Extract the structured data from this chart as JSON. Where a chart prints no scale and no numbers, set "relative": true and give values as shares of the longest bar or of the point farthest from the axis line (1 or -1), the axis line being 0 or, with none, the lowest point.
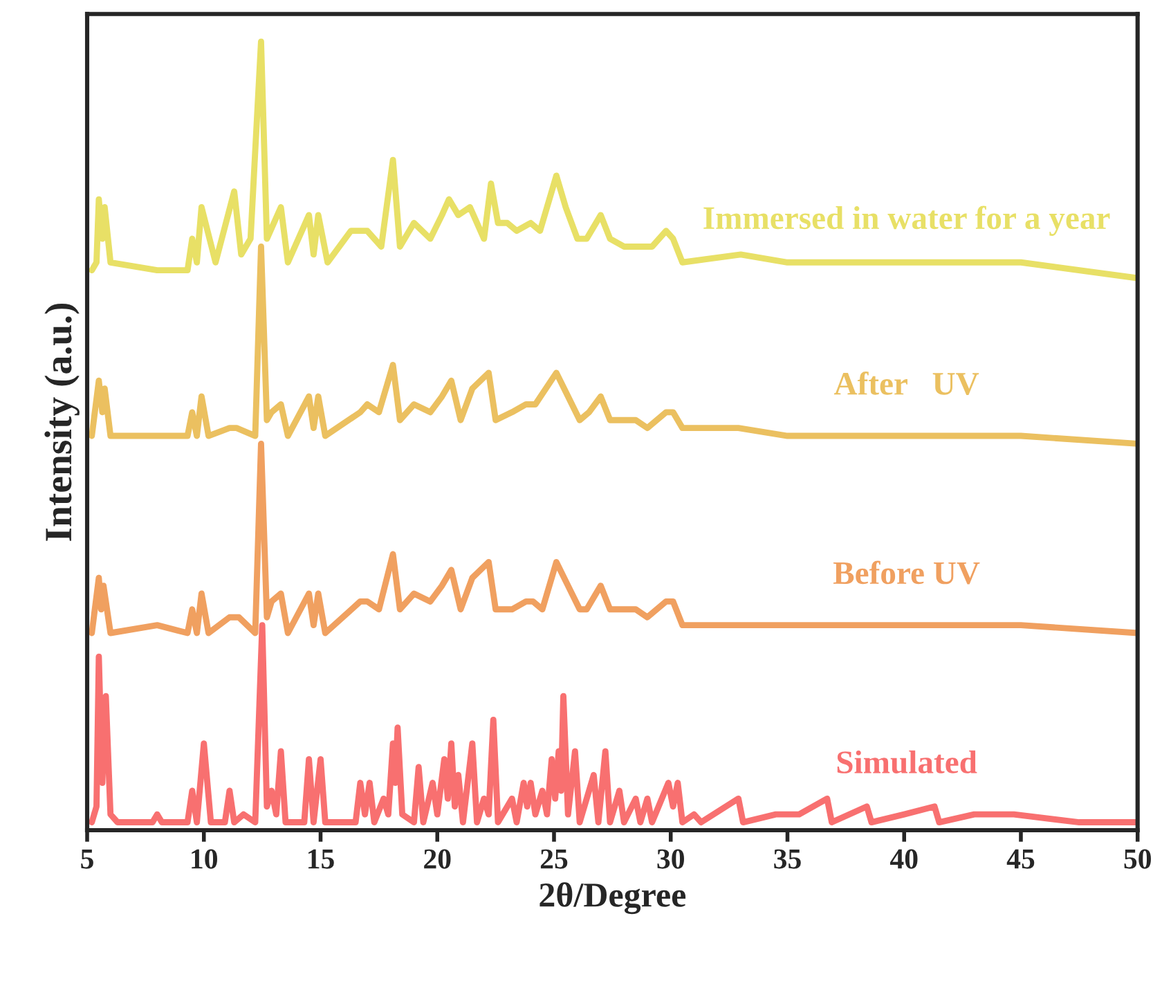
{
  "chart_data": {
    "type": "line",
    "relative": true,
    "xlabel": "2θ/Degree",
    "ylabel": "Intensity (a.u.)",
    "xlim": [
      5,
      50
    ],
    "xticks": [
      5,
      10,
      15,
      20,
      25,
      30,
      35,
      40,
      45,
      50
    ],
    "tick_labels": "x",
    "grid": false,
    "legend": false,
    "series": [
      {
        "name": "Immersed in water for a year",
        "color": "#e8e066",
        "x": [
          5.2,
          5.4,
          5.5,
          5.65,
          5.75,
          6.0,
          8.0,
          9.3,
          9.5,
          9.7,
          9.9,
          10.5,
          11.3,
          11.6,
          12.0,
          12.45,
          12.7,
          13.3,
          13.6,
          14.5,
          14.7,
          14.9,
          15.3,
          16.3,
          16.7,
          17.0,
          17.6,
          18.1,
          18.4,
          19.0,
          19.7,
          20.2,
          20.5,
          20.9,
          21.4,
          22.0,
          22.3,
          22.6,
          23.0,
          23.4,
          24.0,
          24.4,
          25.1,
          25.5,
          26.0,
          26.4,
          27.0,
          27.4,
          28.0,
          28.7,
          29.2,
          29.8,
          30.1,
          30.5,
          33.0,
          35.0,
          38.0,
          41.3,
          45.0,
          50.0
        ],
        "values": [
          0.71,
          0.72,
          0.8,
          0.75,
          0.79,
          0.72,
          0.71,
          0.71,
          0.75,
          0.72,
          0.79,
          0.72,
          0.81,
          0.73,
          0.75,
          1.0,
          0.75,
          0.79,
          0.72,
          0.78,
          0.73,
          0.78,
          0.72,
          0.76,
          0.76,
          0.76,
          0.74,
          0.85,
          0.74,
          0.77,
          0.75,
          0.78,
          0.8,
          0.78,
          0.79,
          0.75,
          0.82,
          0.77,
          0.77,
          0.76,
          0.77,
          0.76,
          0.83,
          0.79,
          0.75,
          0.75,
          0.78,
          0.75,
          0.74,
          0.74,
          0.74,
          0.76,
          0.75,
          0.72,
          0.73,
          0.72,
          0.72,
          0.72,
          0.72,
          0.7
        ]
      },
      {
        "name": "After   UV",
        "color": "#ebc060",
        "x": [
          5.2,
          5.5,
          5.65,
          5.75,
          6.0,
          8.0,
          9.3,
          9.5,
          9.7,
          9.9,
          10.2,
          11.1,
          11.4,
          12.2,
          12.45,
          12.7,
          12.9,
          13.3,
          13.6,
          14.5,
          14.7,
          14.9,
          15.2,
          16.7,
          17.0,
          17.5,
          18.1,
          18.4,
          19.0,
          19.7,
          20.2,
          20.6,
          21.0,
          21.5,
          22.2,
          22.5,
          23.2,
          23.8,
          24.2,
          25.1,
          25.6,
          26.1,
          26.5,
          27.0,
          27.4,
          28.5,
          29.0,
          29.8,
          30.1,
          30.5,
          32.9,
          35.0,
          40.0,
          45.0,
          50.0
        ],
        "values": [
          0.5,
          0.57,
          0.53,
          0.56,
          0.5,
          0.5,
          0.5,
          0.53,
          0.5,
          0.55,
          0.5,
          0.51,
          0.51,
          0.5,
          0.74,
          0.52,
          0.53,
          0.54,
          0.5,
          0.55,
          0.51,
          0.55,
          0.5,
          0.53,
          0.54,
          0.53,
          0.59,
          0.52,
          0.54,
          0.53,
          0.55,
          0.57,
          0.52,
          0.56,
          0.58,
          0.52,
          0.53,
          0.54,
          0.54,
          0.58,
          0.55,
          0.52,
          0.53,
          0.55,
          0.52,
          0.52,
          0.51,
          0.53,
          0.53,
          0.51,
          0.51,
          0.5,
          0.5,
          0.5,
          0.49
        ]
      },
      {
        "name": "Before UV",
        "color": "#f0a060",
        "x": [
          5.2,
          5.5,
          5.6,
          5.7,
          6.0,
          8.0,
          9.3,
          9.5,
          9.7,
          9.9,
          10.2,
          11.1,
          11.5,
          12.2,
          12.45,
          12.7,
          12.9,
          13.3,
          13.6,
          14.5,
          14.7,
          14.9,
          15.2,
          16.7,
          17.0,
          17.5,
          18.1,
          18.4,
          19.0,
          19.7,
          20.2,
          20.6,
          21.0,
          21.5,
          22.2,
          22.5,
          23.2,
          23.8,
          24.1,
          24.5,
          25.1,
          25.6,
          26.1,
          26.4,
          27.0,
          27.4,
          28.5,
          29.0,
          29.8,
          30.1,
          30.5,
          32.9,
          35.0,
          40.0,
          45.0,
          50.0
        ],
        "values": [
          0.25,
          0.32,
          0.28,
          0.31,
          0.25,
          0.26,
          0.25,
          0.28,
          0.25,
          0.3,
          0.25,
          0.27,
          0.27,
          0.25,
          0.49,
          0.27,
          0.29,
          0.3,
          0.25,
          0.3,
          0.26,
          0.3,
          0.25,
          0.29,
          0.29,
          0.28,
          0.35,
          0.28,
          0.3,
          0.29,
          0.31,
          0.33,
          0.28,
          0.32,
          0.34,
          0.28,
          0.28,
          0.29,
          0.29,
          0.28,
          0.34,
          0.31,
          0.28,
          0.28,
          0.31,
          0.28,
          0.28,
          0.27,
          0.29,
          0.29,
          0.26,
          0.26,
          0.26,
          0.26,
          0.26,
          0.25
        ]
      },
      {
        "name": "Simulated",
        "color": "#f87070",
        "x": [
          5.2,
          5.4,
          5.5,
          5.65,
          5.8,
          6.0,
          6.3,
          7.8,
          8.0,
          8.2,
          9.3,
          9.5,
          9.7,
          10.0,
          10.3,
          10.9,
          11.1,
          11.3,
          11.7,
          12.2,
          12.5,
          12.7,
          12.9,
          13.1,
          13.3,
          13.5,
          14.3,
          14.5,
          14.7,
          15.0,
          15.2,
          16.5,
          16.7,
          16.9,
          17.1,
          17.3,
          17.7,
          17.9,
          18.1,
          18.2,
          18.3,
          18.5,
          19.0,
          19.2,
          19.4,
          19.8,
          20.0,
          20.3,
          20.45,
          20.6,
          20.75,
          20.9,
          21.1,
          21.5,
          21.7,
          22.0,
          22.2,
          22.4,
          22.6,
          23.2,
          23.4,
          23.7,
          23.85,
          24.0,
          24.2,
          24.5,
          24.7,
          24.9,
          25.05,
          25.2,
          25.3,
          25.4,
          25.6,
          25.9,
          26.1,
          26.7,
          26.9,
          27.2,
          27.4,
          27.8,
          28.0,
          28.5,
          28.7,
          29.0,
          29.2,
          29.9,
          30.1,
          30.3,
          30.5,
          31.0,
          31.3,
          32.9,
          33.1,
          34.5,
          35.5,
          36.7,
          36.9,
          38.4,
          38.6,
          40.0,
          41.3,
          41.5,
          43.0,
          44.7,
          47.5,
          50.0
        ],
        "values": [
          0.01,
          0.03,
          0.22,
          0.06,
          0.17,
          0.02,
          0.01,
          0.01,
          0.02,
          0.01,
          0.01,
          0.05,
          0.01,
          0.11,
          0.01,
          0.01,
          0.05,
          0.01,
          0.02,
          0.01,
          0.26,
          0.03,
          0.05,
          0.02,
          0.1,
          0.01,
          0.01,
          0.09,
          0.01,
          0.09,
          0.01,
          0.01,
          0.06,
          0.02,
          0.06,
          0.01,
          0.04,
          0.02,
          0.11,
          0.06,
          0.13,
          0.02,
          0.01,
          0.08,
          0.01,
          0.06,
          0.02,
          0.09,
          0.04,
          0.11,
          0.03,
          0.07,
          0.01,
          0.11,
          0.01,
          0.04,
          0.02,
          0.14,
          0.01,
          0.04,
          0.01,
          0.06,
          0.03,
          0.06,
          0.02,
          0.05,
          0.02,
          0.09,
          0.04,
          0.1,
          0.05,
          0.17,
          0.02,
          0.1,
          0.01,
          0.07,
          0.01,
          0.1,
          0.01,
          0.05,
          0.01,
          0.04,
          0.01,
          0.04,
          0.01,
          0.06,
          0.03,
          0.06,
          0.01,
          0.02,
          0.01,
          0.04,
          0.01,
          0.02,
          0.02,
          0.04,
          0.01,
          0.03,
          0.01,
          0.02,
          0.03,
          0.01,
          0.02,
          0.02,
          0.01,
          0.01
        ]
      }
    ]
  }
}
